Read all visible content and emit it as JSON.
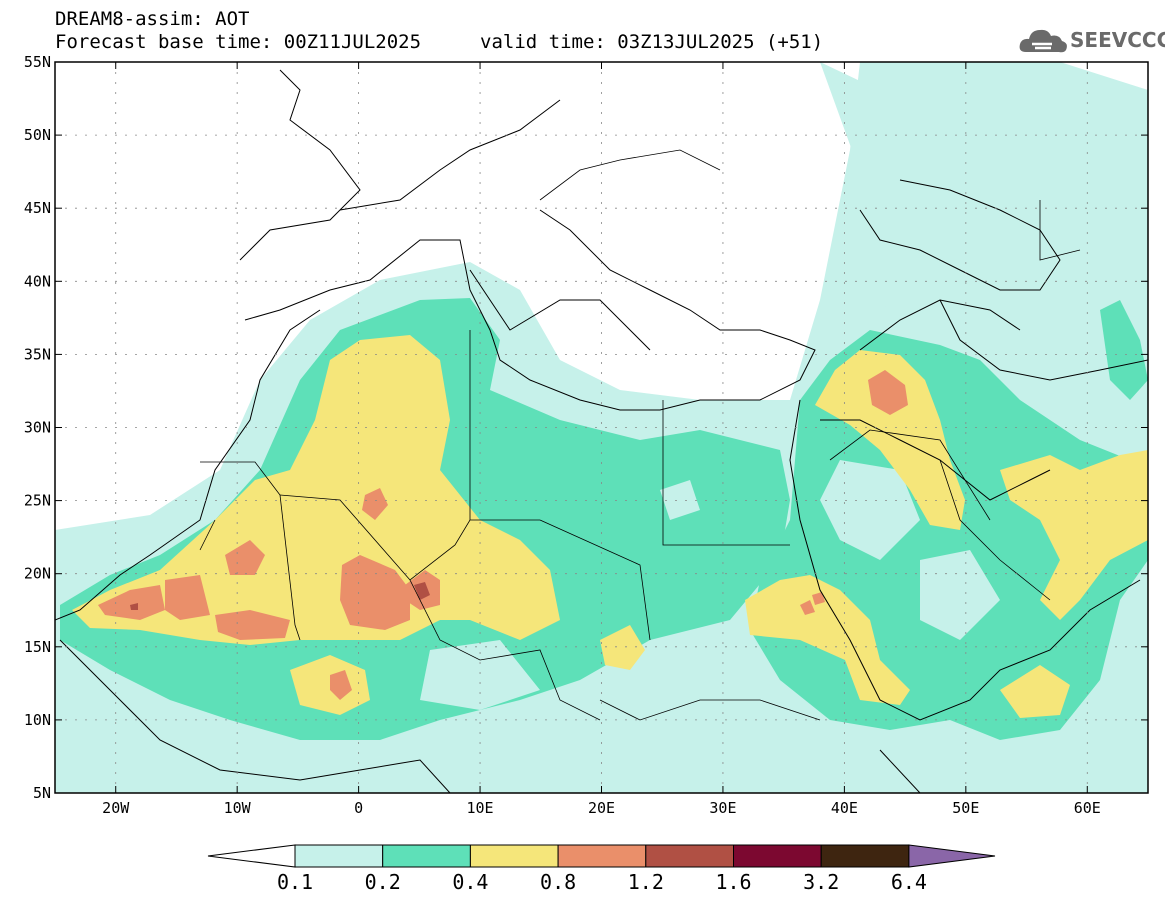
{
  "header": {
    "model_title": "DREAM8-assim: AOT",
    "base_time": "Forecast base time: 00Z11JUL2025",
    "valid_time": "valid time: 03Z13JUL2025 (+51)",
    "logo_text": "SEEVCCC",
    "logo_icon": "cloud-icon"
  },
  "map": {
    "lat_labels": [
      "55N",
      "50N",
      "45N",
      "40N",
      "35N",
      "30N",
      "25N",
      "20N",
      "15N",
      "10N",
      "5N"
    ],
    "lon_labels": [
      "20W",
      "10W",
      "0",
      "10E",
      "20E",
      "30E",
      "40E",
      "50E",
      "60E"
    ],
    "lon_range": [
      -25,
      65
    ],
    "lat_range": [
      5,
      55
    ]
  },
  "colorbar": {
    "labels": [
      "0.1",
      "0.2",
      "0.4",
      "0.8",
      "1.2",
      "1.6",
      "3.2",
      "6.4"
    ],
    "colors": [
      "#ffffff",
      "#c6f1ea",
      "#5ee0b8",
      "#f5e67a",
      "#ea8f6a",
      "#b05044",
      "#7c0830",
      "#3e2510",
      "#8a66a8"
    ]
  }
}
